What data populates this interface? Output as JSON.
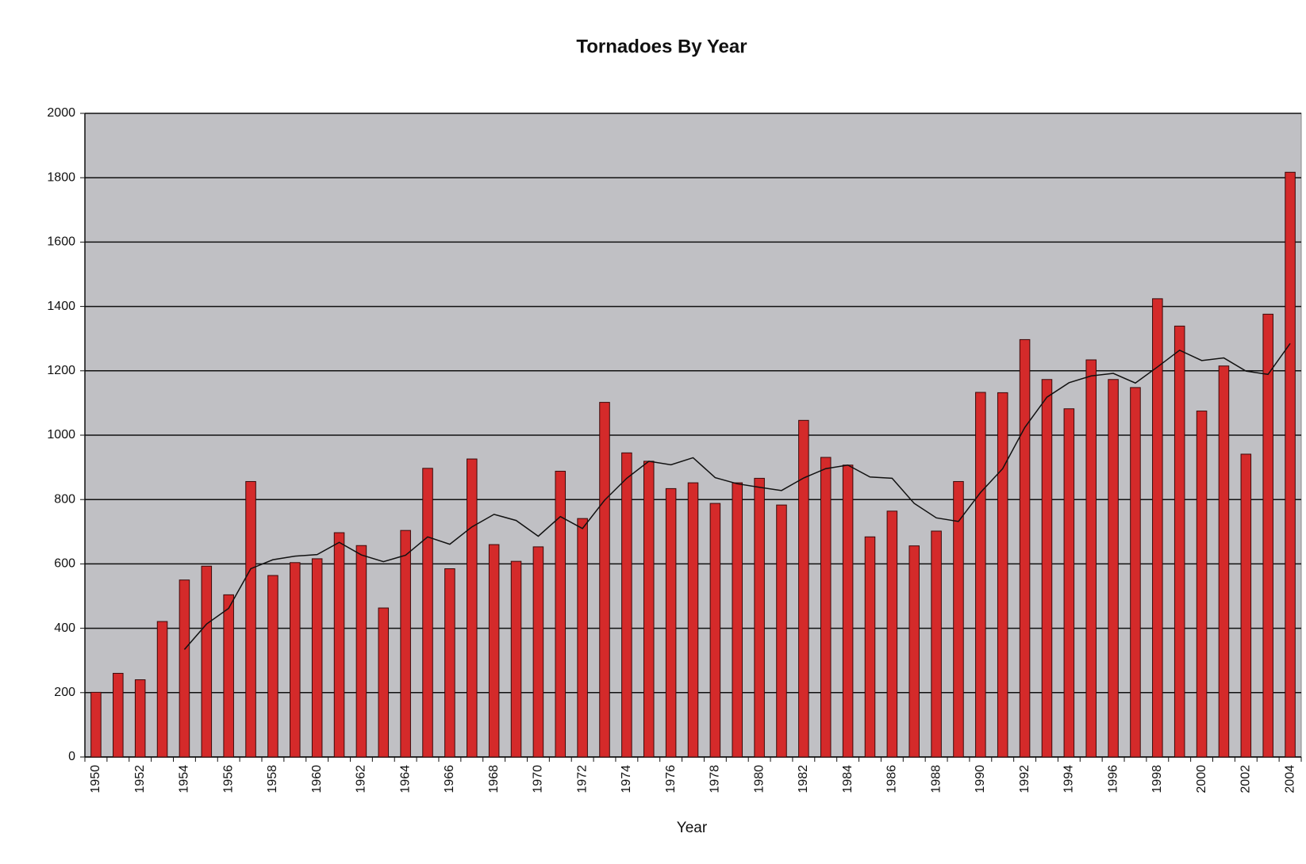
{
  "chart_data": {
    "type": "bar",
    "title": "Tornadoes By Year",
    "x_label": "Year",
    "categories": [
      "1950",
      null,
      "1952",
      null,
      "1954",
      null,
      "1956",
      null,
      "1958",
      null,
      "1960",
      null,
      "1962",
      null,
      "1964",
      null,
      "1966",
      null,
      "1968",
      null,
      "1970",
      null,
      "1972",
      null,
      "1974",
      null,
      "1976",
      null,
      "1978",
      null,
      "1980",
      null,
      "1982",
      null,
      "1984",
      null,
      "1986",
      null,
      "1988",
      null,
      "1990",
      null,
      "1992",
      null,
      "1994",
      null,
      "1996",
      null,
      "1998",
      null,
      "2000",
      null,
      "2002",
      null,
      "2004"
    ],
    "series": [
      {
        "type": "bar",
        "color": "#d42a2a",
        "values": [
          201,
          260,
          240,
          421,
          550,
          593,
          504,
          856,
          564,
          604,
          616,
          697,
          657,
          463,
          704,
          897,
          585,
          926,
          660,
          608,
          653,
          888,
          741,
          1102,
          945,
          919,
          834,
          852,
          788,
          852,
          866,
          783,
          1046,
          931,
          907,
          684,
          764,
          656,
          702,
          856,
          1133,
          1132,
          1297,
          1173,
          1082,
          1234,
          1173,
          1148,
          1424,
          1339,
          1075,
          1215,
          941,
          1376,
          1817
        ]
      },
      {
        "type": "line",
        "color": "#111111",
        "values": [
          null,
          null,
          null,
          null,
          334,
          413,
          462,
          585,
          613,
          624,
          629,
          667,
          628,
          607,
          627,
          684,
          661,
          715,
          754,
          735,
          686,
          747,
          710,
          798,
          866,
          919,
          908,
          930,
          868,
          849,
          838,
          828,
          867,
          896,
          907,
          870,
          866,
          788,
          743,
          732,
          822,
          896,
          1024,
          1118,
          1163,
          1184,
          1192,
          1162,
          1212,
          1264,
          1232,
          1240,
          1199,
          1189,
          1285
        ]
      }
    ],
    "ylim": [
      0,
      2000
    ],
    "yticks": [
      0,
      200,
      400,
      600,
      800,
      1000,
      1200,
      1400,
      1600,
      1800,
      2000
    ],
    "grid": true
  }
}
